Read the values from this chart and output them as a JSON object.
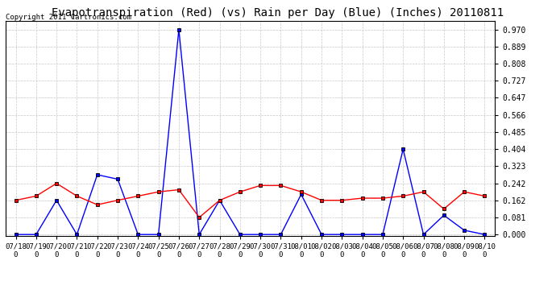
{
  "title": "Evapotranspiration (Red) (vs) Rain per Day (Blue) (Inches) 20110811",
  "copyright": "Copyright 2011 Cartronics.com",
  "labels": [
    "07/18",
    "07/19",
    "07/20",
    "07/21",
    "07/22",
    "07/23",
    "07/24",
    "07/25",
    "07/26",
    "07/27",
    "07/28",
    "07/29",
    "07/30",
    "07/31",
    "08/01",
    "08/02",
    "08/03",
    "08/04",
    "08/05",
    "08/06",
    "08/07",
    "08/08",
    "08/09",
    "08/10"
  ],
  "blue_rain": [
    0.0,
    0.0,
    0.162,
    0.0,
    0.283,
    0.262,
    0.0,
    0.0,
    0.97,
    0.0,
    0.162,
    0.0,
    0.0,
    0.0,
    0.19,
    0.0,
    0.0,
    0.0,
    0.0,
    0.404,
    0.0,
    0.091,
    0.02,
    0.0
  ],
  "red_et": [
    0.162,
    0.182,
    0.242,
    0.182,
    0.141,
    0.162,
    0.182,
    0.202,
    0.212,
    0.081,
    0.162,
    0.202,
    0.232,
    0.232,
    0.202,
    0.162,
    0.162,
    0.172,
    0.172,
    0.182,
    0.202,
    0.121,
    0.202,
    0.182
  ],
  "bg_color": "#ffffff",
  "plot_bg": "#ffffff",
  "blue_color": "#0000ff",
  "red_color": "#ff0000",
  "grid_color": "#c8c8c8",
  "yticks": [
    0.0,
    0.081,
    0.162,
    0.242,
    0.323,
    0.404,
    0.485,
    0.566,
    0.647,
    0.727,
    0.808,
    0.889,
    0.97
  ],
  "ylim": [
    -0.005,
    1.01
  ],
  "title_fontsize": 10,
  "copyright_fontsize": 6.5
}
